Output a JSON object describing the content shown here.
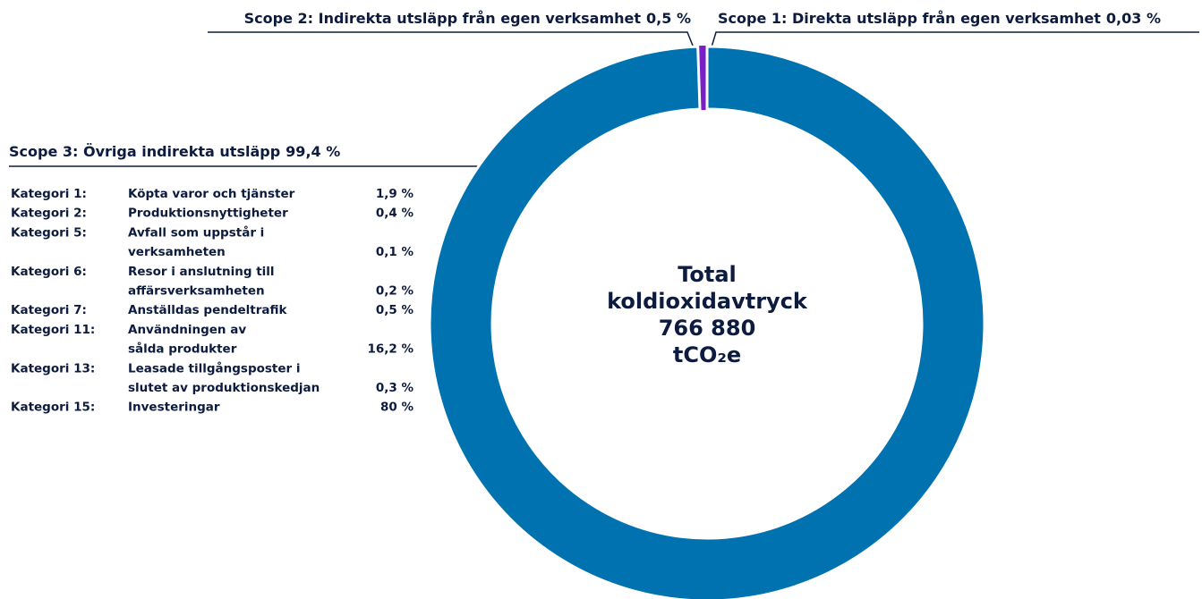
{
  "chart_data": {
    "type": "donut",
    "categories": [
      "Scope 1: Direkta utsläpp från egen verksamhet",
      "Scope 2: Indirekta utsläpp från egen verksamhet",
      "Scope 3: Övriga indirekta utsläpp"
    ],
    "values": [
      0.03,
      0.5,
      99.4
    ],
    "value_labels": [
      "0,03 %",
      "0,5 %",
      "99,4 %"
    ],
    "colors": [
      "#111111",
      "#7a1fc8",
      "#0072b0"
    ],
    "center_label": [
      "Total",
      "koldioxidavtryck",
      "766 880",
      "tCO₂e"
    ],
    "breakdown": [
      {
        "category": "Kategori 1:",
        "name": [
          "Köpta varor och tjänster"
        ],
        "share": "1,9 %"
      },
      {
        "category": "Kategori 2:",
        "name": [
          "Produktionsnyttigheter"
        ],
        "share": "0,4 %"
      },
      {
        "category": "Kategori 5:",
        "name": [
          "Avfall som uppstår i",
          "verksamheten"
        ],
        "share": "0,1 %"
      },
      {
        "category": "Kategori 6:",
        "name": [
          "Resor i anslutning till",
          "affärsverksamheten"
        ],
        "share": "0,2 %"
      },
      {
        "category": "Kategori 7:",
        "name": [
          "Anställdas pendeltrafik"
        ],
        "share": "0,5 %"
      },
      {
        "category": "Kategori 11:",
        "name": [
          "Användningen av",
          "sålda produkter"
        ],
        "share": "16,2 %"
      },
      {
        "category": "Kategori 13:",
        "name": [
          "Leasade tillgångsposter i",
          "slutet av produktionskedjan"
        ],
        "share": "0,3 %"
      },
      {
        "category": "Kategori 15:",
        "name": [
          "Investeringar"
        ],
        "share": "80 %"
      }
    ]
  }
}
